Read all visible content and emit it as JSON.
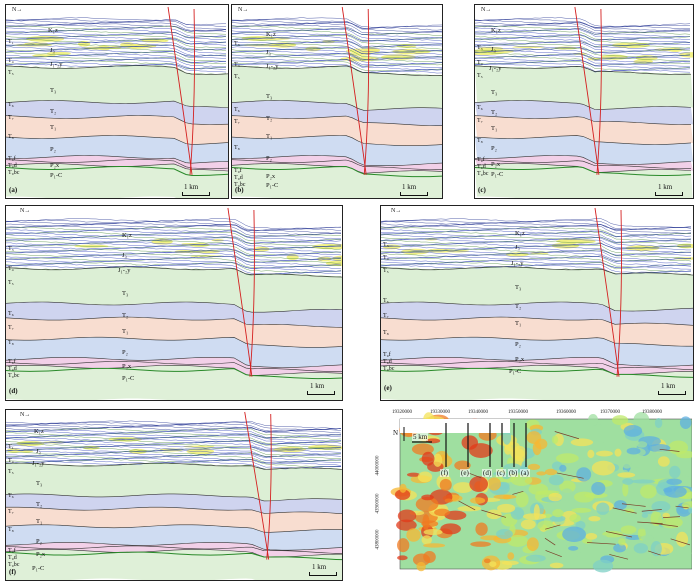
{
  "north_label": "N",
  "scale_label": "1 km",
  "horizon_labels": [
    "T₁",
    "T₂",
    "T₃",
    "T₄",
    "T₅",
    "T₆",
    "T₇",
    "T₈",
    "T₉f",
    "T₉d",
    "T₉bc"
  ],
  "unit_labels": {
    "k1z": "K₁z",
    "j3": "J₃",
    "j12y": "J₁-₂y",
    "t3": "T₃",
    "t2": "T₂",
    "t1": "T₁",
    "p2": "P₂",
    "p2x": "P₂x",
    "p1c": "P₁-C"
  },
  "panels": [
    {
      "label": "(a)"
    },
    {
      "label": "(b)"
    },
    {
      "label": "(c)"
    },
    {
      "label": "(d)"
    },
    {
      "label": "(e)"
    },
    {
      "label": "(f)"
    }
  ],
  "map": {
    "x_ticks": [
      "19320000",
      "19330000",
      "19340000",
      "19350000",
      "19360000",
      "19370000",
      "19380000"
    ],
    "y_ticks": [
      "44000000",
      "43900000",
      "43800000"
    ],
    "scale_label": "5 km",
    "north_label": "N",
    "section_labels": [
      "(f)",
      "(e)",
      "(d)",
      "(c)",
      "(b)",
      "(a)"
    ]
  },
  "colors": {
    "t3_fill": "#dcefd5",
    "t2_fill": "#cfd4ef",
    "t1_fill": "#f8ddd0",
    "p2_fill": "#cfdcf2",
    "p2x_fill": "#f2d0e8",
    "p1_fill": "#dff0d8",
    "jurassic_yellow": "#f1ef7a",
    "horizon_blue": "#2e3fb8",
    "fault_red": "#d42020"
  }
}
